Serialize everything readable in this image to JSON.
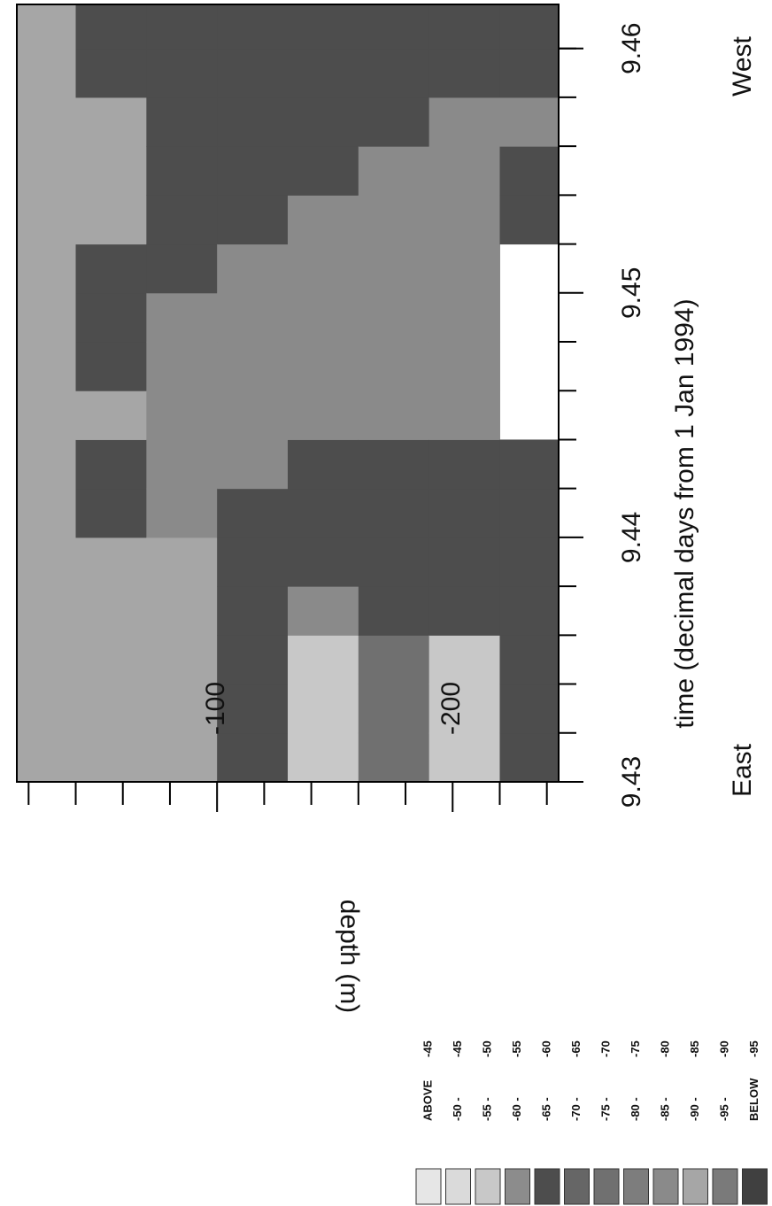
{
  "chart_data": {
    "type": "heatmap",
    "xlabel": "time (decimal days from 1 Jan 1994)",
    "ylabel": "depth (m)",
    "left_note": "East",
    "right_note": "West",
    "xlim": [
      9.43,
      9.4618
    ],
    "ylim": [
      -15,
      -245
    ],
    "xticks": [
      9.43,
      9.44,
      9.45,
      9.46
    ],
    "xminor": [
      9.432,
      9.434,
      9.436,
      9.438,
      9.442,
      9.444,
      9.446,
      9.448,
      9.452,
      9.454,
      9.456,
      9.458,
      9.46
    ],
    "yticks": [
      -100,
      -200
    ],
    "yminor": [
      -20,
      -40,
      -60,
      -80,
      -120,
      -140,
      -160,
      -180,
      -220,
      -240
    ],
    "x": [
      9.431,
      9.433,
      9.435,
      9.437,
      9.439,
      9.441,
      9.443,
      9.445,
      9.447,
      9.449,
      9.451,
      9.453,
      9.455,
      9.457,
      9.459,
      9.461
    ],
    "y": [
      -25,
      -55,
      -85,
      -115,
      -145,
      -175,
      -205,
      -235
    ],
    "z": [
      [
        -87,
        -87,
        -87,
        -87,
        -87,
        -87,
        -87,
        -87,
        -87,
        -87,
        -87,
        -87,
        -87,
        -87,
        -87,
        -87
      ],
      [
        -87,
        -87,
        -87,
        -87,
        -87,
        -62,
        -62,
        -87,
        -62,
        -62,
        -62,
        -87,
        -87,
        -87,
        -62,
        -62
      ],
      [
        -87,
        -87,
        -87,
        -87,
        -87,
        -82,
        -82,
        -82,
        -82,
        -82,
        -62,
        -62,
        -62,
        -62,
        -62,
        -62
      ],
      [
        -62,
        -62,
        -62,
        -62,
        -62,
        -62,
        -82,
        -82,
        -82,
        -82,
        -82,
        -62,
        -62,
        -62,
        -62,
        -62
      ],
      [
        -52,
        -52,
        -52,
        -82,
        -62,
        -62,
        -62,
        -82,
        -82,
        -82,
        -82,
        -82,
        -62,
        -62,
        -62,
        -62
      ],
      [
        -72,
        -72,
        -72,
        -62,
        -62,
        -62,
        -62,
        -82,
        -82,
        -82,
        -82,
        -82,
        -82,
        -62,
        -62,
        -62
      ],
      [
        -52,
        -52,
        -52,
        -62,
        -62,
        -62,
        -62,
        -82,
        -82,
        -82,
        -82,
        -82,
        -82,
        -82,
        -62,
        -62
      ],
      [
        -62,
        -62,
        -62,
        -62,
        -62,
        -62,
        -62,
        null,
        null,
        null,
        null,
        -62,
        -62,
        -82,
        -62,
        -62
      ]
    ],
    "levels": [
      -45,
      -50,
      -55,
      -60,
      -65,
      -70,
      -75,
      -80,
      -85,
      -90,
      -95
    ],
    "legend": [
      {
        "range": "ABOVE",
        "limit": "-45",
        "color": "#e6e6e6"
      },
      {
        "range": "-50 -",
        "limit": "-45",
        "color": "#dadada"
      },
      {
        "range": "-55 -",
        "limit": "-50",
        "color": "#c8c8c8"
      },
      {
        "range": "-60 -",
        "limit": "-55",
        "color": "#8c8c8c"
      },
      {
        "range": "-65 -",
        "limit": "-60",
        "color": "#4d4d4d"
      },
      {
        "range": "-70 -",
        "limit": "-65",
        "color": "#666666"
      },
      {
        "range": "-75 -",
        "limit": "-70",
        "color": "#707070"
      },
      {
        "range": "-80 -",
        "limit": "-75",
        "color": "#7d7d7d"
      },
      {
        "range": "-85 -",
        "limit": "-80",
        "color": "#8a8a8a"
      },
      {
        "range": "-90 -",
        "limit": "-85",
        "color": "#a6a6a6"
      },
      {
        "range": "-95 -",
        "limit": "-90",
        "color": "#7a7a7a"
      },
      {
        "range": "BELOW",
        "limit": "-95",
        "color": "#404040"
      }
    ]
  }
}
